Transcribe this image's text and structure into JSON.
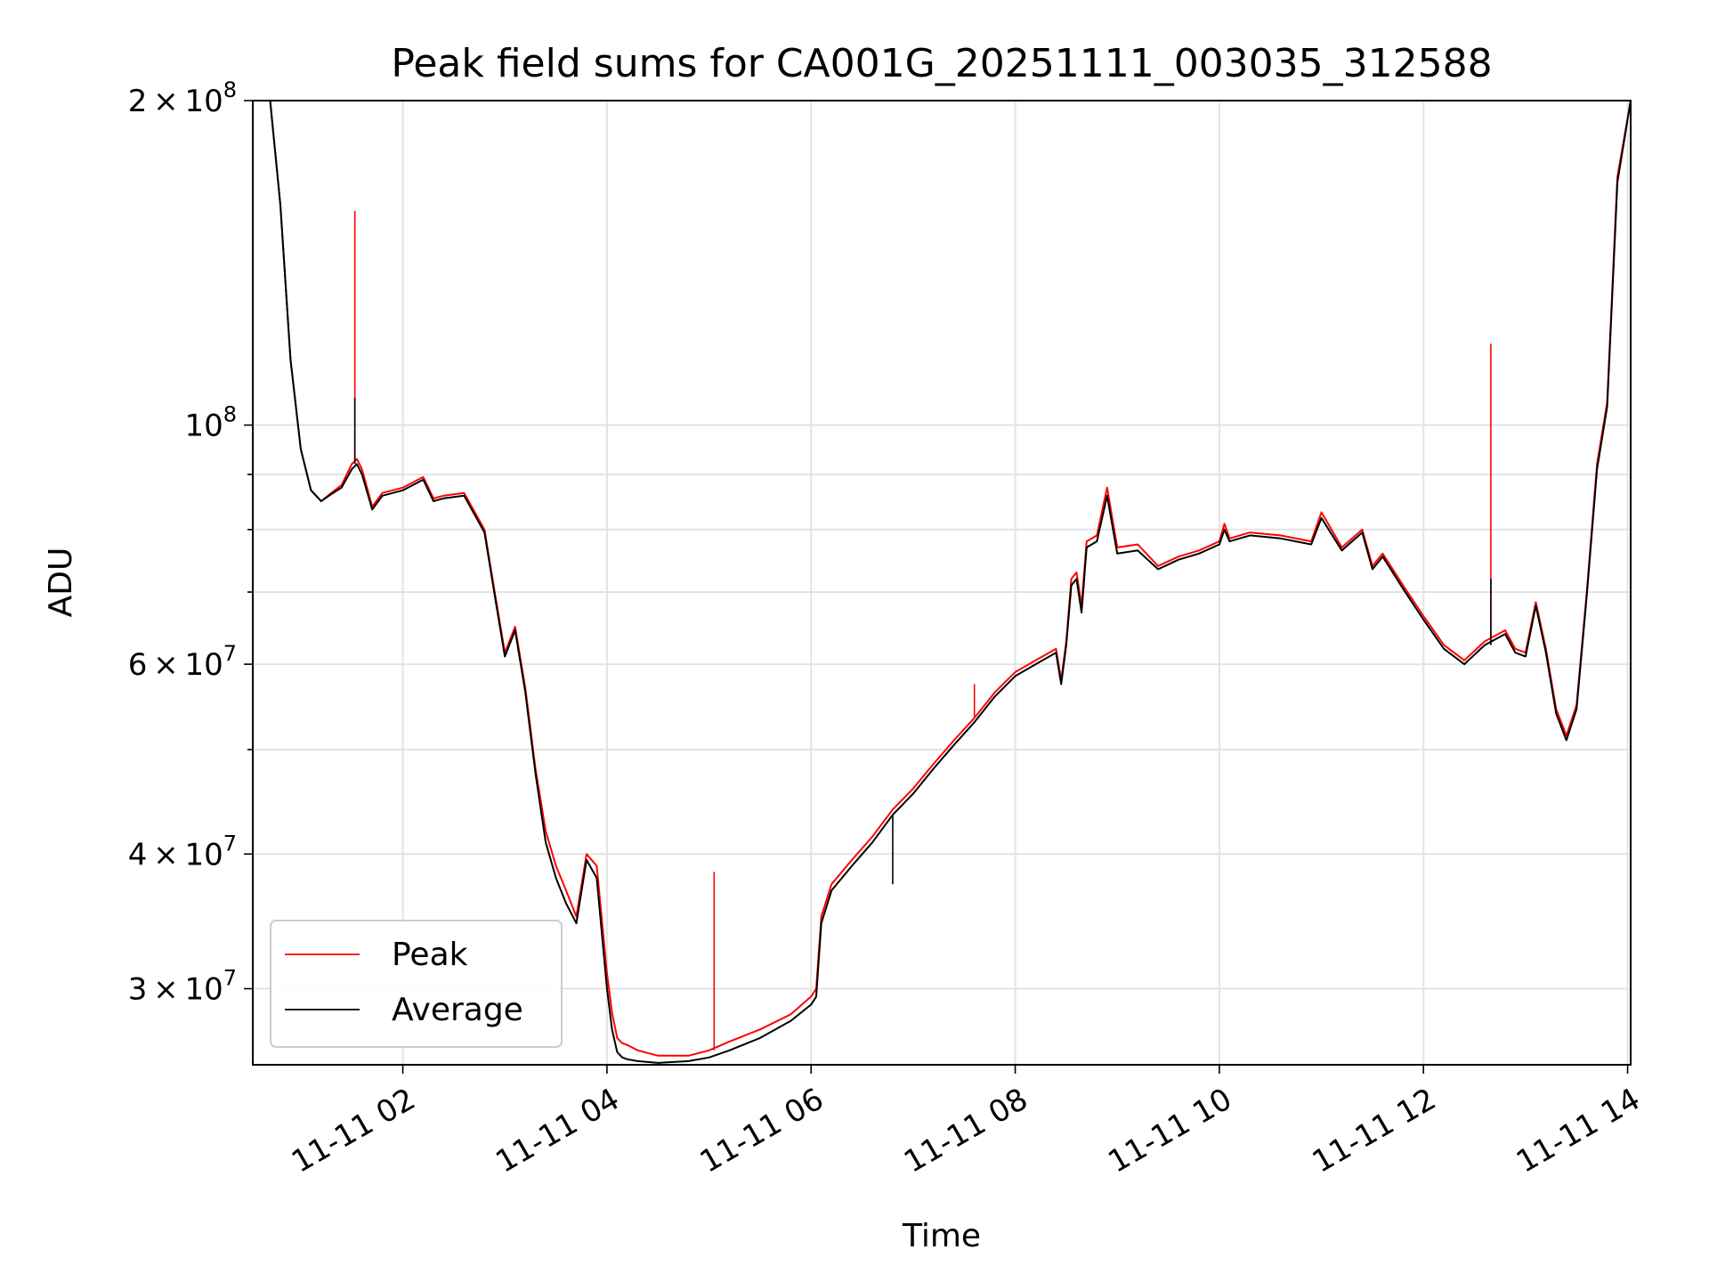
{
  "chart_data": {
    "type": "line",
    "title": "Peak field sums for CA001G_20251111_003035_312588",
    "xlabel": "Time",
    "ylabel": "ADU",
    "y_scale": "log",
    "ylim": [
      25500000,
      200000000
    ],
    "xlim_hours": [
      0.53,
      14.03
    ],
    "grid": true,
    "legend_position": "lower-left",
    "x_ticks": [
      {
        "hour": 2,
        "label": "11-11 02"
      },
      {
        "hour": 4,
        "label": "11-11 04"
      },
      {
        "hour": 6,
        "label": "11-11 06"
      },
      {
        "hour": 8,
        "label": "11-11 08"
      },
      {
        "hour": 10,
        "label": "11-11 10"
      },
      {
        "hour": 12,
        "label": "11-11 12"
      },
      {
        "hour": 14,
        "label": "11-11 14"
      }
    ],
    "y_ticks": [
      {
        "value": 30000000,
        "mantissa": "3",
        "exponent": "7"
      },
      {
        "value": 40000000,
        "mantissa": "4",
        "exponent": "7"
      },
      {
        "value": 60000000,
        "mantissa": "6",
        "exponent": "7"
      },
      {
        "value": 100000000,
        "mantissa": "",
        "exponent": "8"
      },
      {
        "value": 200000000,
        "mantissa": "2",
        "exponent": "8"
      }
    ],
    "y_minor_ticks": [
      50000000,
      70000000,
      80000000,
      90000000
    ],
    "series": [
      {
        "name": "Peak",
        "color": "#ff0000",
        "hours": [
          0.53,
          0.7,
          0.8,
          0.9,
          1.0,
          1.1,
          1.2,
          1.3,
          1.4,
          1.5,
          1.55,
          1.6,
          1.7,
          1.8,
          2.0,
          2.2,
          2.3,
          2.4,
          2.6,
          2.8,
          2.9,
          3.0,
          3.1,
          3.2,
          3.3,
          3.4,
          3.5,
          3.6,
          3.7,
          3.8,
          3.9,
          4.0,
          4.05,
          4.1,
          4.15,
          4.2,
          4.3,
          4.5,
          4.8,
          5.0,
          5.2,
          5.5,
          5.8,
          6.0,
          6.05,
          6.1,
          6.2,
          6.4,
          6.6,
          6.8,
          7.0,
          7.2,
          7.4,
          7.6,
          7.8,
          8.0,
          8.2,
          8.4,
          8.45,
          8.5,
          8.55,
          8.6,
          8.65,
          8.7,
          8.8,
          8.9,
          9.0,
          9.2,
          9.4,
          9.6,
          9.8,
          10.0,
          10.05,
          10.1,
          10.3,
          10.6,
          10.9,
          11.0,
          11.2,
          11.4,
          11.5,
          11.6,
          11.8,
          12.0,
          12.2,
          12.4,
          12.6,
          12.8,
          12.9,
          13.0,
          13.1,
          13.2,
          13.3,
          13.4,
          13.5,
          13.6,
          13.7,
          13.8,
          13.9,
          14.03
        ],
        "values": [
          200000000,
          200000000,
          160000000,
          115000000,
          95000000,
          87000000,
          85000000,
          86500000,
          88000000,
          92000000,
          93000000,
          91000000,
          84000000,
          86500000,
          87500000,
          89500000,
          85500000,
          86000000,
          86500000,
          80000000,
          70000000,
          61500000,
          65000000,
          57000000,
          48000000,
          42000000,
          39000000,
          37000000,
          35000000,
          40000000,
          39000000,
          31000000,
          28500000,
          27000000,
          26700000,
          26600000,
          26300000,
          26000000,
          26000000,
          26300000,
          26800000,
          27500000,
          28400000,
          29500000,
          30000000,
          35000000,
          37500000,
          39500000,
          41500000,
          44000000,
          46000000,
          48500000,
          51000000,
          53500000,
          56500000,
          59000000,
          60500000,
          62000000,
          58000000,
          63000000,
          72000000,
          73000000,
          68000000,
          78000000,
          79000000,
          87500000,
          77000000,
          77500000,
          74000000,
          75500000,
          76500000,
          78000000,
          81000000,
          78500000,
          79500000,
          79000000,
          78000000,
          83000000,
          77000000,
          80000000,
          74000000,
          76000000,
          71000000,
          66500000,
          62500000,
          60500000,
          63000000,
          64500000,
          62000000,
          61500000,
          68500000,
          62000000,
          54500000,
          51500000,
          55000000,
          70000000,
          92000000,
          105000000,
          170000000,
          200000000
        ],
        "spikes": [
          {
            "hour": 1.53,
            "value": 158000000
          },
          {
            "hour": 5.05,
            "value": 38500000
          },
          {
            "hour": 7.6,
            "value": 57500000
          },
          {
            "hour": 12.66,
            "value": 119000000
          }
        ]
      },
      {
        "name": "Average",
        "color": "#000000",
        "hours": [
          0.53,
          0.7,
          0.8,
          0.9,
          1.0,
          1.1,
          1.2,
          1.3,
          1.4,
          1.5,
          1.55,
          1.6,
          1.7,
          1.8,
          2.0,
          2.2,
          2.3,
          2.4,
          2.6,
          2.8,
          2.9,
          3.0,
          3.1,
          3.2,
          3.3,
          3.4,
          3.5,
          3.6,
          3.7,
          3.8,
          3.9,
          4.0,
          4.05,
          4.1,
          4.15,
          4.2,
          4.3,
          4.5,
          4.8,
          5.0,
          5.2,
          5.5,
          5.8,
          6.0,
          6.05,
          6.1,
          6.2,
          6.4,
          6.6,
          6.8,
          7.0,
          7.2,
          7.4,
          7.6,
          7.8,
          8.0,
          8.2,
          8.4,
          8.45,
          8.5,
          8.55,
          8.6,
          8.65,
          8.7,
          8.8,
          8.9,
          9.0,
          9.2,
          9.4,
          9.6,
          9.8,
          10.0,
          10.05,
          10.1,
          10.3,
          10.6,
          10.9,
          11.0,
          11.2,
          11.4,
          11.5,
          11.6,
          11.8,
          12.0,
          12.2,
          12.4,
          12.6,
          12.8,
          12.9,
          13.0,
          13.1,
          13.2,
          13.3,
          13.4,
          13.5,
          13.6,
          13.7,
          13.8,
          13.9,
          14.03
        ],
        "values": [
          200000000,
          200000000,
          160000000,
          115000000,
          95000000,
          87000000,
          85000000,
          86300000,
          87500000,
          91000000,
          92000000,
          90000000,
          83500000,
          86000000,
          87000000,
          89000000,
          85000000,
          85500000,
          86000000,
          79500000,
          69500000,
          61000000,
          64500000,
          56500000,
          47500000,
          41000000,
          38000000,
          36000000,
          34500000,
          39500000,
          38000000,
          30000000,
          27500000,
          26200000,
          25900000,
          25800000,
          25700000,
          25600000,
          25700000,
          25900000,
          26300000,
          27000000,
          28000000,
          29000000,
          29500000,
          34500000,
          37000000,
          39000000,
          41000000,
          43500000,
          45500000,
          48000000,
          50500000,
          53000000,
          56000000,
          58500000,
          60000000,
          61500000,
          57500000,
          62500000,
          71000000,
          72000000,
          67000000,
          77000000,
          78000000,
          86000000,
          76000000,
          76500000,
          73500000,
          75000000,
          76000000,
          77500000,
          80000000,
          78000000,
          79000000,
          78500000,
          77500000,
          82000000,
          76500000,
          79500000,
          73500000,
          75500000,
          70500000,
          66000000,
          62000000,
          60000000,
          62500000,
          64000000,
          61500000,
          61000000,
          68000000,
          61500000,
          54000000,
          51000000,
          54500000,
          69500000,
          91000000,
          104000000,
          168000000,
          200000000
        ],
        "spikes": [
          {
            "hour": 1.53,
            "value": 106000000
          },
          {
            "hour": 6.8,
            "value": 37500000
          },
          {
            "hour": 12.66,
            "value": 72000000
          }
        ]
      }
    ]
  }
}
